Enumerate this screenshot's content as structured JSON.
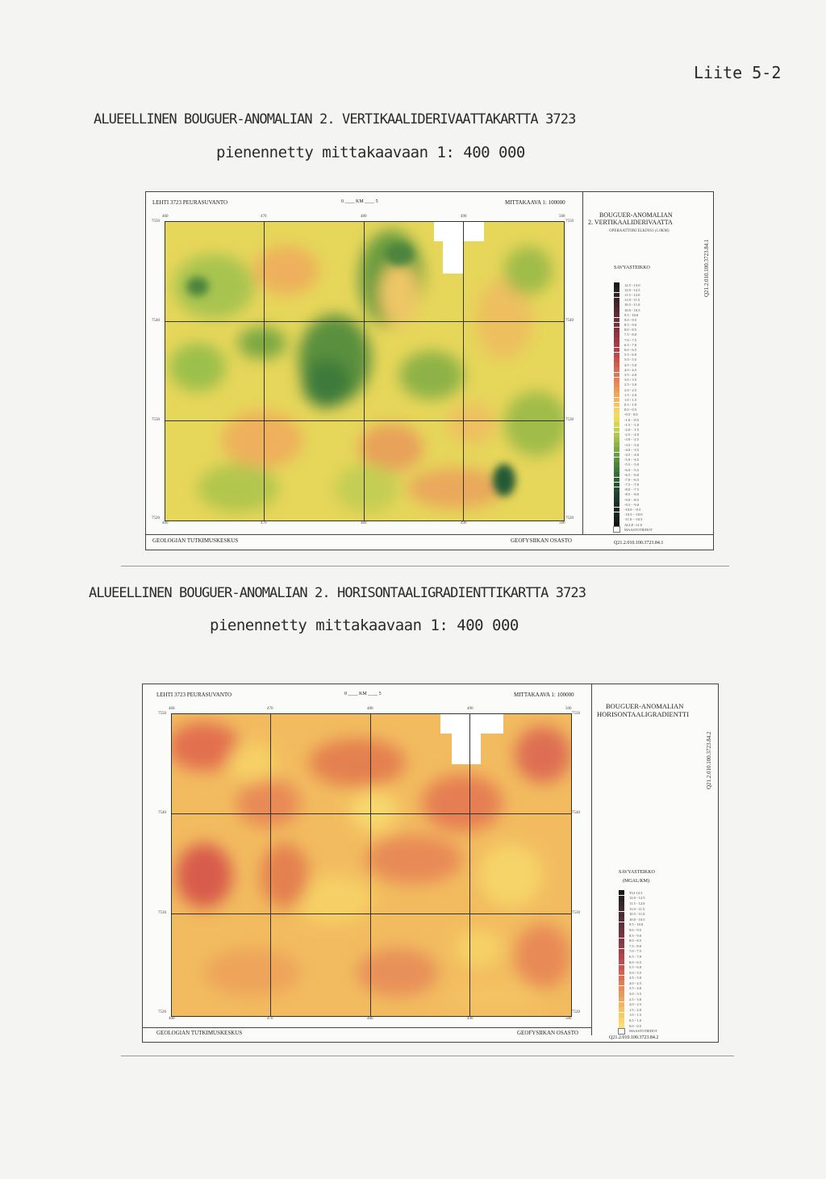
{
  "page": {
    "appendix_label": "Liite 5-2"
  },
  "map1": {
    "heading": "ALUEELLINEN BOUGUER-ANOMALIAN 2. VERTIKAALIDERIVAATTAKARTTA 3723",
    "subheading": "pienennetty mittakaavaan 1: 400 000",
    "sheet_label": "LEHTI 3723 PEURASUVANTO",
    "scale_bar": "0 ____ KM ____ 5",
    "scale": "MITTAKAAVA 1: 100000",
    "legend_title_1": "BOUGUER-ANOMALIAN",
    "legend_title_2": "2. VERTIKAALIDERIVAATTA",
    "legend_subtitle": "OPERAATTORI ELKINS1 (1.0KM)",
    "color_scale_title": "SAVYASTEIKKO",
    "footer_left": "GEOLOGIAN TUTKIMUSKESKUS",
    "footer_right": "GEOFYSIIKAN OSASTO",
    "code_bottom": "Q21.2.010.100.3723.84.1",
    "code_side": "Q21.2.010.100.3723.84.1",
    "x_ticks": [
      "460",
      "470",
      "480",
      "490",
      "500"
    ],
    "y_ticks": [
      "7550",
      "7540",
      "7530",
      "7520"
    ],
    "legend": [
      {
        "label": "12.5 - 13.0",
        "color": "#1a1a1a"
      },
      {
        "label": "12.0 - 12.5",
        "color": "#222222"
      },
      {
        "label": "11.5 - 12.0",
        "color": "#2e2226"
      },
      {
        "label": "11.0 - 11.5",
        "color": "#3a2428"
      },
      {
        "label": "10.5 - 11.0",
        "color": "#46262c"
      },
      {
        "label": "10.0 - 10.5",
        "color": "#522a30"
      },
      {
        "label": "9.5 - 10.0",
        "color": "#5e2c34"
      },
      {
        "label": "9.0 - 9.5",
        "color": "#6a2e38"
      },
      {
        "label": "8.5 - 9.0",
        "color": "#76303a"
      },
      {
        "label": "8.0 - 8.5",
        "color": "#82323e"
      },
      {
        "label": "7.5 - 8.0",
        "color": "#8e3442"
      },
      {
        "label": "7.0 - 7.5",
        "color": "#9a3846"
      },
      {
        "label": "6.5 - 7.0",
        "color": "#a63c48"
      },
      {
        "label": "6.0 - 6.5",
        "color": "#b2404a"
      },
      {
        "label": "5.5 - 6.0",
        "color": "#be484c"
      },
      {
        "label": "5.0 - 5.5",
        "color": "#c8524e"
      },
      {
        "label": "4.5 - 5.0",
        "color": "#d05e50"
      },
      {
        "label": "4.0 - 4.5",
        "color": "#d86a52"
      },
      {
        "label": "3.5 - 4.0",
        "color": "#de7654"
      },
      {
        "label": "3.0 - 3.5",
        "color": "#e28256"
      },
      {
        "label": "2.5 - 3.0",
        "color": "#e68e58"
      },
      {
        "label": "2.0 - 2.5",
        "color": "#ea9a5a"
      },
      {
        "label": "1.5 - 2.0",
        "color": "#eea85c"
      },
      {
        "label": "1.0 - 1.5",
        "color": "#f2b65e"
      },
      {
        "label": "0.5 - 1.0",
        "color": "#f4c462"
      },
      {
        "label": "0.0 - 0.5",
        "color": "#f6d266"
      },
      {
        "label": "-0.5 - 0.0",
        "color": "#f2dc60"
      },
      {
        "label": "-1.0 - -0.5",
        "color": "#e6dc5a"
      },
      {
        "label": "-1.5 - -1.0",
        "color": "#d6d656"
      },
      {
        "label": "-2.0 - -1.5",
        "color": "#c4ce52"
      },
      {
        "label": "-2.5 - -2.0",
        "color": "#b2c64e"
      },
      {
        "label": "-3.0 - -2.5",
        "color": "#a0bc4a"
      },
      {
        "label": "-3.5 - -3.0",
        "color": "#8eb246"
      },
      {
        "label": "-4.0 - -3.5",
        "color": "#7ca842"
      },
      {
        "label": "-4.5 - -4.0",
        "color": "#6a9c40"
      },
      {
        "label": "-5.0 - -4.5",
        "color": "#5a903e"
      },
      {
        "label": "-5.5 - -5.0",
        "color": "#4c843c"
      },
      {
        "label": "-6.0 - -5.5",
        "color": "#40783a"
      },
      {
        "label": "-6.5 - -6.0",
        "color": "#366c38"
      },
      {
        "label": "-7.0 - -6.5",
        "color": "#2e6036"
      },
      {
        "label": "-7.5 - -7.0",
        "color": "#285434"
      },
      {
        "label": "-8.0 - -7.5",
        "color": "#244a32"
      },
      {
        "label": "-8.5 - -8.0",
        "color": "#20402e"
      },
      {
        "label": "-9.0 - -8.5",
        "color": "#1e382a"
      },
      {
        "label": "-9.5 - -9.0",
        "color": "#1c3028"
      },
      {
        "label": "-10.0 - -9.5",
        "color": "#1a2a24"
      },
      {
        "label": "-10.5 - -10.0",
        "color": "#182420"
      },
      {
        "label": "-11.0 - -10.5",
        "color": "#161e1c"
      },
      {
        "label": "ALLE -11.0",
        "color": "#121212"
      },
      {
        "label": "MAASTOTIEDOT",
        "color": "#ffffff"
      }
    ]
  },
  "map2": {
    "heading": "ALUEELLINEN BOUGUER-ANOMALIAN 2. HORISONTAALIGRADIENTTIKARTTA 3723",
    "subheading": "pienennetty mittakaavaan 1: 400 000",
    "sheet_label": "LEHTI 3723 PEURASUVANTO",
    "scale_bar": "0 ____ KM ____ 5",
    "scale": "MITTAKAAVA 1: 100000",
    "legend_title_1": "BOUGUER-ANOMALIAN",
    "legend_title_2": "HORISONTAALIGRADIENTTI",
    "color_scale_title": "SAVYASTEIKKO",
    "color_scale_unit": "(MGAL/KM)",
    "footer_left": "GEOLOGIAN TUTKIMUSKESKUS",
    "footer_right": "GEOFYSIIKAN OSASTO",
    "code_bottom": "Q21.2.010.100.3723.84.2",
    "code_side": "Q21.2.010.100.3723.84.2",
    "x_ticks": [
      "460",
      "470",
      "480",
      "490",
      "500"
    ],
    "y_ticks": [
      "7550",
      "7540",
      "7530",
      "7520"
    ],
    "legend": [
      {
        "label": "YLI 12.5",
        "color": "#1a1a1a"
      },
      {
        "label": "12.0 - 12.5",
        "color": "#262224"
      },
      {
        "label": "11.5 - 12.0",
        "color": "#32262a"
      },
      {
        "label": "11.0 - 11.5",
        "color": "#3e2a2e"
      },
      {
        "label": "10.5 - 11.0",
        "color": "#4a2c32"
      },
      {
        "label": "10.0 - 10.5",
        "color": "#562e36"
      },
      {
        "label": "9.5 - 10.0",
        "color": "#62303a"
      },
      {
        "label": "9.0 - 9.5",
        "color": "#6e323e"
      },
      {
        "label": "8.5 - 9.0",
        "color": "#7a3440"
      },
      {
        "label": "8.0 - 8.5",
        "color": "#863644"
      },
      {
        "label": "7.5 - 8.0",
        "color": "#963a46"
      },
      {
        "label": "7.0 - 7.5",
        "color": "#a43e48"
      },
      {
        "label": "6.5 - 7.0",
        "color": "#b2444a"
      },
      {
        "label": "6.0 - 6.5",
        "color": "#c04c4c"
      },
      {
        "label": "5.5 - 6.0",
        "color": "#cc564e"
      },
      {
        "label": "5.0 - 5.5",
        "color": "#d66250"
      },
      {
        "label": "4.5 - 5.0",
        "color": "#de6e52"
      },
      {
        "label": "4.0 - 4.5",
        "color": "#e47c54"
      },
      {
        "label": "3.5 - 4.0",
        "color": "#e88a56"
      },
      {
        "label": "3.0 - 3.5",
        "color": "#ec9858"
      },
      {
        "label": "2.5 - 3.0",
        "color": "#efa65a"
      },
      {
        "label": "2.0 - 2.5",
        "color": "#f2b45e"
      },
      {
        "label": "1.5 - 2.0",
        "color": "#f4c262"
      },
      {
        "label": "1.0 - 1.5",
        "color": "#f6cc66"
      },
      {
        "label": "0.5 - 1.0",
        "color": "#f8d66c"
      },
      {
        "label": "0.0 - 0.5",
        "color": "#fadf76"
      },
      {
        "label": "MAASTOTIEDOT",
        "color": "#ffffff"
      }
    ]
  }
}
